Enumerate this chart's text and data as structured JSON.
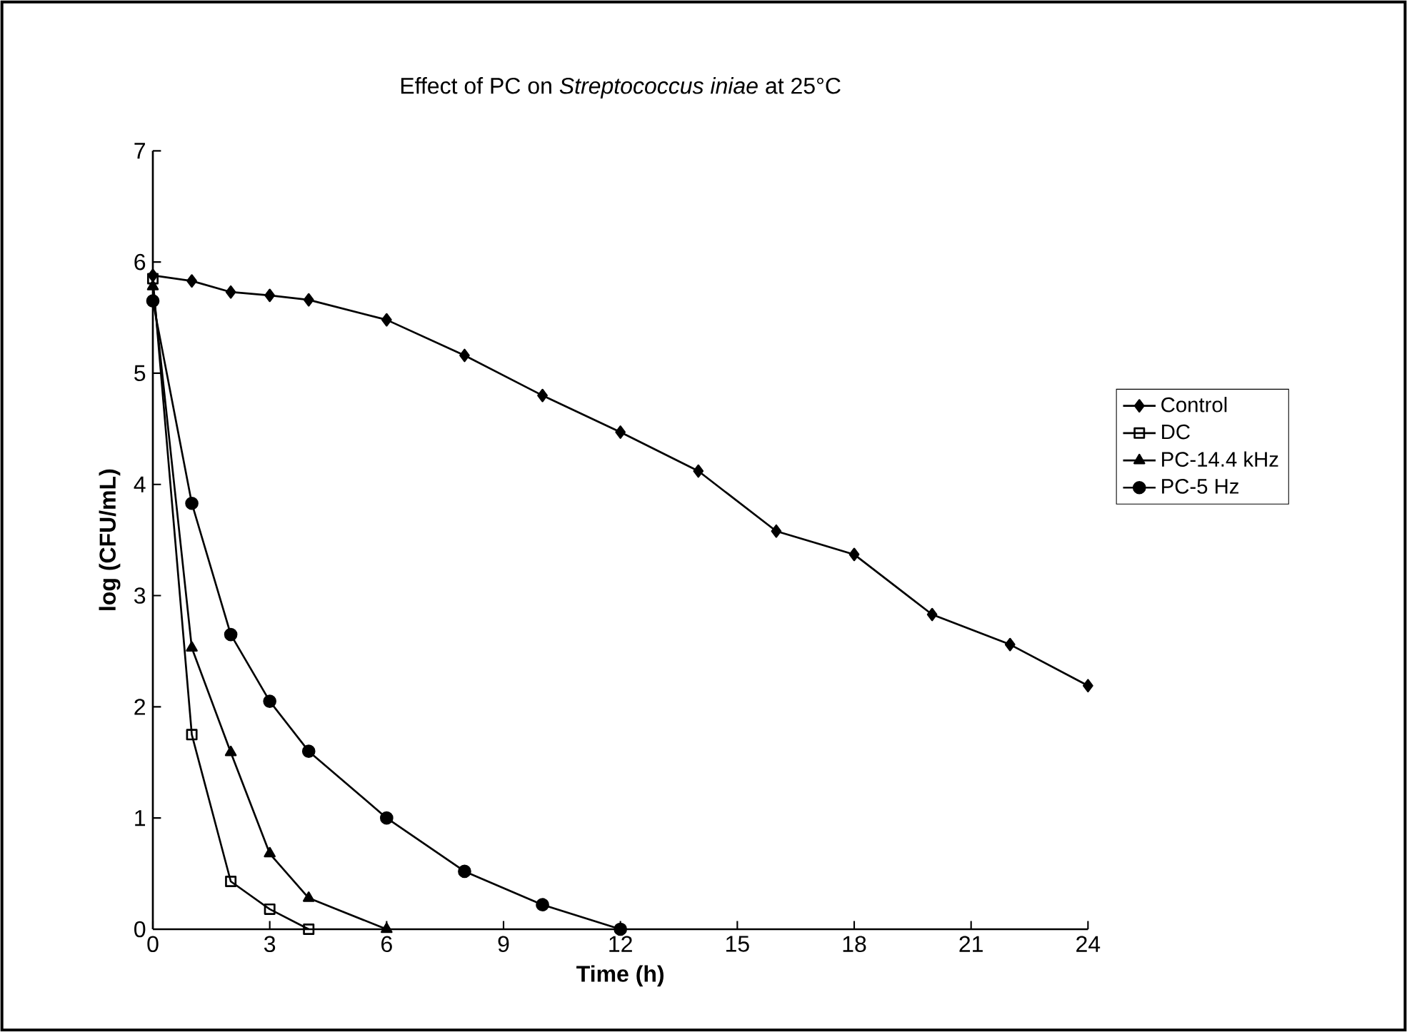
{
  "chart_data": {
    "type": "line",
    "title": "Effect of PC on *Streptococcus iniae* at 25°C",
    "xlabel": "Time (h)",
    "ylabel": "log (CFU/mL)",
    "xlim": [
      0,
      24
    ],
    "xticks": [
      0,
      3,
      6,
      9,
      12,
      15,
      18,
      21,
      24
    ],
    "ylim": [
      0,
      7
    ],
    "yticks": [
      0,
      1,
      2,
      3,
      4,
      5,
      6,
      7
    ],
    "grid": false,
    "legend": "right",
    "line_style": "solid",
    "series": [
      {
        "name": "Control",
        "color": "#000000",
        "marker": "diamond",
        "x": [
          0,
          1,
          2,
          3,
          4,
          6,
          8,
          10,
          12,
          14,
          16,
          18,
          20,
          22,
          24
        ],
        "values": [
          5.88,
          5.83,
          5.73,
          5.7,
          5.66,
          5.48,
          5.16,
          4.8,
          4.47,
          4.12,
          3.58,
          3.37,
          2.83,
          2.56,
          2.19
        ]
      },
      {
        "name": "DC",
        "color": "#000000",
        "marker": "square",
        "x": [
          0,
          1,
          2,
          3,
          4
        ],
        "values": [
          5.85,
          1.75,
          0.43,
          0.18,
          0
        ]
      },
      {
        "name": "PC-14.4 kHz",
        "color": "#000000",
        "marker": "triangle",
        "x": [
          0,
          1,
          2,
          3,
          4,
          6
        ],
        "values": [
          5.78,
          2.53,
          1.59,
          0.68,
          0.28,
          0
        ]
      },
      {
        "name": "PC-5 Hz",
        "color": "#000000",
        "marker": "circle",
        "x": [
          0,
          1,
          2,
          3,
          4,
          6,
          8,
          10,
          12
        ],
        "values": [
          5.65,
          3.83,
          2.65,
          2.05,
          1.6,
          1.0,
          0.52,
          0.22,
          0
        ]
      }
    ]
  }
}
